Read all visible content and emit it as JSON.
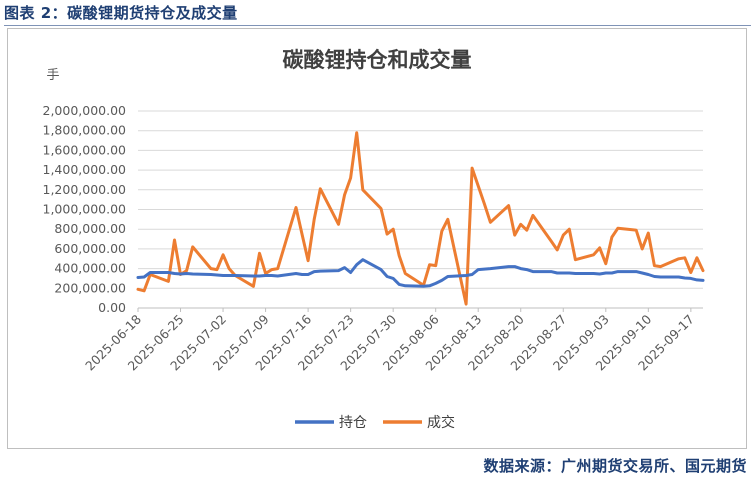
{
  "figure_caption": "图表 2：碳酸锂期货持仓及成交量",
  "source_note": "数据来源：广州期货交易所、国元期货",
  "colors": {
    "holdings": "#4472c4",
    "volume": "#ed7d31",
    "grid": "#d9d9d9",
    "axis_text": "#595959"
  },
  "chart_data": {
    "type": "line",
    "title": "碳酸锂持仓和成交量",
    "ylabel": "手",
    "ylim": [
      0,
      2000000
    ],
    "yticks": [
      0,
      200000,
      400000,
      600000,
      800000,
      1000000,
      1200000,
      1400000,
      1600000,
      1800000,
      2000000
    ],
    "ytick_labels": [
      "0.00",
      "200,000.00",
      "400,000.00",
      "600,000.00",
      "800,000.00",
      "1,000,000.00",
      "1,200,000.00",
      "1,400,000.00",
      "1,600,000.00",
      "1,800,000.00",
      "2,000,000.00"
    ],
    "x_start": "2025-06-18",
    "x_end": "2025-09-19",
    "xticks": [
      "2025-06-18",
      "2025-06-25",
      "2025-07-02",
      "2025-07-09",
      "2025-07-16",
      "2025-07-23",
      "2025-07-30",
      "2025-08-06",
      "2025-08-13",
      "2025-08-20",
      "2025-08-27",
      "2025-09-03",
      "2025-09-10",
      "2025-09-17"
    ],
    "grid": true,
    "legend_position": "bottom",
    "series": [
      {
        "name": "持仓",
        "color": "#4472c4",
        "points": [
          [
            "2025-06-18",
            310000
          ],
          [
            "2025-06-19",
            315000
          ],
          [
            "2025-06-20",
            360000
          ],
          [
            "2025-06-23",
            360000
          ],
          [
            "2025-06-24",
            350000
          ],
          [
            "2025-06-25",
            345000
          ],
          [
            "2025-06-26",
            350000
          ],
          [
            "2025-06-27",
            345000
          ],
          [
            "2025-06-30",
            340000
          ],
          [
            "2025-07-01",
            335000
          ],
          [
            "2025-07-02",
            330000
          ],
          [
            "2025-07-03",
            330000
          ],
          [
            "2025-07-04",
            330000
          ],
          [
            "2025-07-07",
            325000
          ],
          [
            "2025-07-08",
            325000
          ],
          [
            "2025-07-09",
            330000
          ],
          [
            "2025-07-10",
            330000
          ],
          [
            "2025-07-11",
            325000
          ],
          [
            "2025-07-14",
            350000
          ],
          [
            "2025-07-15",
            340000
          ],
          [
            "2025-07-16",
            340000
          ],
          [
            "2025-07-17",
            370000
          ],
          [
            "2025-07-18",
            375000
          ],
          [
            "2025-07-21",
            380000
          ],
          [
            "2025-07-22",
            410000
          ],
          [
            "2025-07-23",
            360000
          ],
          [
            "2025-07-24",
            440000
          ],
          [
            "2025-07-25",
            490000
          ],
          [
            "2025-07-28",
            390000
          ],
          [
            "2025-07-29",
            320000
          ],
          [
            "2025-07-30",
            300000
          ],
          [
            "2025-07-31",
            240000
          ],
          [
            "2025-08-01",
            225000
          ],
          [
            "2025-08-04",
            220000
          ],
          [
            "2025-08-05",
            225000
          ],
          [
            "2025-08-06",
            250000
          ],
          [
            "2025-08-07",
            280000
          ],
          [
            "2025-08-08",
            320000
          ],
          [
            "2025-08-11",
            330000
          ],
          [
            "2025-08-12",
            340000
          ],
          [
            "2025-08-13",
            390000
          ],
          [
            "2025-08-14",
            395000
          ],
          [
            "2025-08-15",
            400000
          ],
          [
            "2025-08-18",
            420000
          ],
          [
            "2025-08-19",
            420000
          ],
          [
            "2025-08-20",
            400000
          ],
          [
            "2025-08-21",
            390000
          ],
          [
            "2025-08-22",
            370000
          ],
          [
            "2025-08-25",
            370000
          ],
          [
            "2025-08-26",
            355000
          ],
          [
            "2025-08-27",
            355000
          ],
          [
            "2025-08-28",
            355000
          ],
          [
            "2025-08-29",
            350000
          ],
          [
            "2025-09-01",
            350000
          ],
          [
            "2025-09-02",
            345000
          ],
          [
            "2025-09-03",
            355000
          ],
          [
            "2025-09-04",
            355000
          ],
          [
            "2025-09-05",
            370000
          ],
          [
            "2025-09-08",
            370000
          ],
          [
            "2025-09-09",
            355000
          ],
          [
            "2025-09-10",
            340000
          ],
          [
            "2025-09-11",
            320000
          ],
          [
            "2025-09-12",
            315000
          ],
          [
            "2025-09-15",
            315000
          ],
          [
            "2025-09-16",
            305000
          ],
          [
            "2025-09-17",
            300000
          ],
          [
            "2025-09-18",
            285000
          ],
          [
            "2025-09-19",
            280000
          ]
        ]
      },
      {
        "name": "成交",
        "color": "#ed7d31",
        "points": [
          [
            "2025-06-18",
            190000
          ],
          [
            "2025-06-19",
            175000
          ],
          [
            "2025-06-20",
            340000
          ],
          [
            "2025-06-23",
            270000
          ],
          [
            "2025-06-24",
            690000
          ],
          [
            "2025-06-25",
            340000
          ],
          [
            "2025-06-26",
            380000
          ],
          [
            "2025-06-27",
            620000
          ],
          [
            "2025-06-30",
            400000
          ],
          [
            "2025-07-01",
            390000
          ],
          [
            "2025-07-02",
            540000
          ],
          [
            "2025-07-03",
            400000
          ],
          [
            "2025-07-04",
            330000
          ],
          [
            "2025-07-07",
            220000
          ],
          [
            "2025-07-08",
            555000
          ],
          [
            "2025-07-09",
            350000
          ],
          [
            "2025-07-10",
            390000
          ],
          [
            "2025-07-11",
            400000
          ],
          [
            "2025-07-14",
            1020000
          ],
          [
            "2025-07-15",
            750000
          ],
          [
            "2025-07-16",
            480000
          ],
          [
            "2025-07-17",
            900000
          ],
          [
            "2025-07-18",
            1210000
          ],
          [
            "2025-07-21",
            850000
          ],
          [
            "2025-07-22",
            1150000
          ],
          [
            "2025-07-23",
            1320000
          ],
          [
            "2025-07-24",
            1780000
          ],
          [
            "2025-07-25",
            1200000
          ],
          [
            "2025-07-28",
            1010000
          ],
          [
            "2025-07-29",
            750000
          ],
          [
            "2025-07-30",
            800000
          ],
          [
            "2025-07-31",
            530000
          ],
          [
            "2025-08-01",
            350000
          ],
          [
            "2025-08-04",
            230000
          ],
          [
            "2025-08-05",
            440000
          ],
          [
            "2025-08-06",
            430000
          ],
          [
            "2025-08-07",
            780000
          ],
          [
            "2025-08-08",
            900000
          ],
          [
            "2025-08-11",
            40000
          ],
          [
            "2025-08-12",
            1420000
          ],
          [
            "2025-08-13",
            1240000
          ],
          [
            "2025-08-14",
            1060000
          ],
          [
            "2025-08-15",
            870000
          ],
          [
            "2025-08-18",
            1040000
          ],
          [
            "2025-08-19",
            740000
          ],
          [
            "2025-08-20",
            850000
          ],
          [
            "2025-08-21",
            790000
          ],
          [
            "2025-08-22",
            940000
          ],
          [
            "2025-08-25",
            680000
          ],
          [
            "2025-08-26",
            590000
          ],
          [
            "2025-08-27",
            740000
          ],
          [
            "2025-08-28",
            800000
          ],
          [
            "2025-08-29",
            490000
          ],
          [
            "2025-09-01",
            540000
          ],
          [
            "2025-09-02",
            610000
          ],
          [
            "2025-09-03",
            450000
          ],
          [
            "2025-09-04",
            720000
          ],
          [
            "2025-09-05",
            810000
          ],
          [
            "2025-09-08",
            790000
          ],
          [
            "2025-09-09",
            600000
          ],
          [
            "2025-09-10",
            760000
          ],
          [
            "2025-09-11",
            430000
          ],
          [
            "2025-09-12",
            420000
          ],
          [
            "2025-09-15",
            500000
          ],
          [
            "2025-09-16",
            510000
          ],
          [
            "2025-09-17",
            360000
          ],
          [
            "2025-09-18",
            510000
          ],
          [
            "2025-09-19",
            380000
          ]
        ]
      }
    ]
  }
}
